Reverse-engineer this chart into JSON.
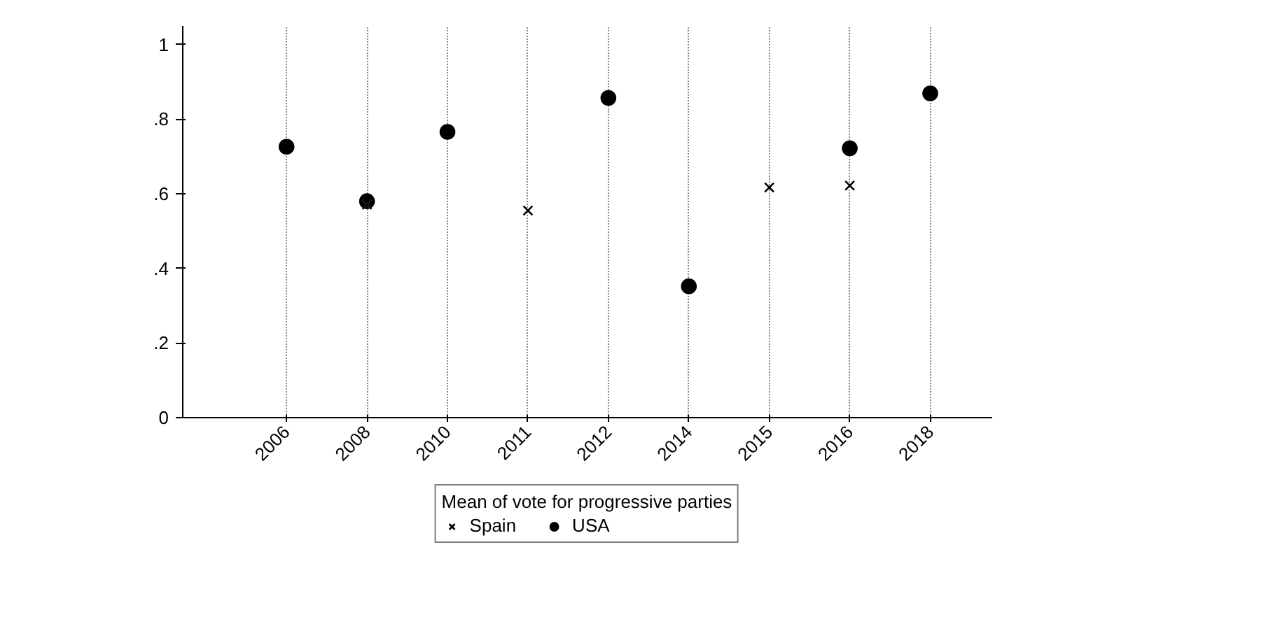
{
  "chart_data": {
    "type": "scatter",
    "categories": [
      "2006",
      "2008",
      "2010",
      "2011",
      "2012",
      "2014",
      "2015",
      "2016",
      "2018"
    ],
    "legend_title": "Mean of vote for progressive parties",
    "series": [
      {
        "name": "Spain",
        "color": "#000000",
        "marker": "cross",
        "values": [
          null,
          0.571,
          null,
          0.555,
          null,
          null,
          0.617,
          0.622,
          null
        ]
      },
      {
        "name": "USA",
        "color": "#000000",
        "marker": "circle",
        "values": [
          0.726,
          0.58,
          0.766,
          null,
          0.857,
          0.352,
          null,
          0.722,
          0.869
        ]
      }
    ],
    "ylim": [
      0,
      1.05
    ],
    "yticks": [
      0,
      {
        "value": 0.2,
        "label": ".2"
      },
      {
        "value": 0.4,
        "label": ".4"
      },
      {
        "value": 0.6,
        "label": ".6"
      },
      {
        "value": 0.8,
        "label": ".8"
      },
      1
    ],
    "grid": "x",
    "legend": "bottom"
  }
}
